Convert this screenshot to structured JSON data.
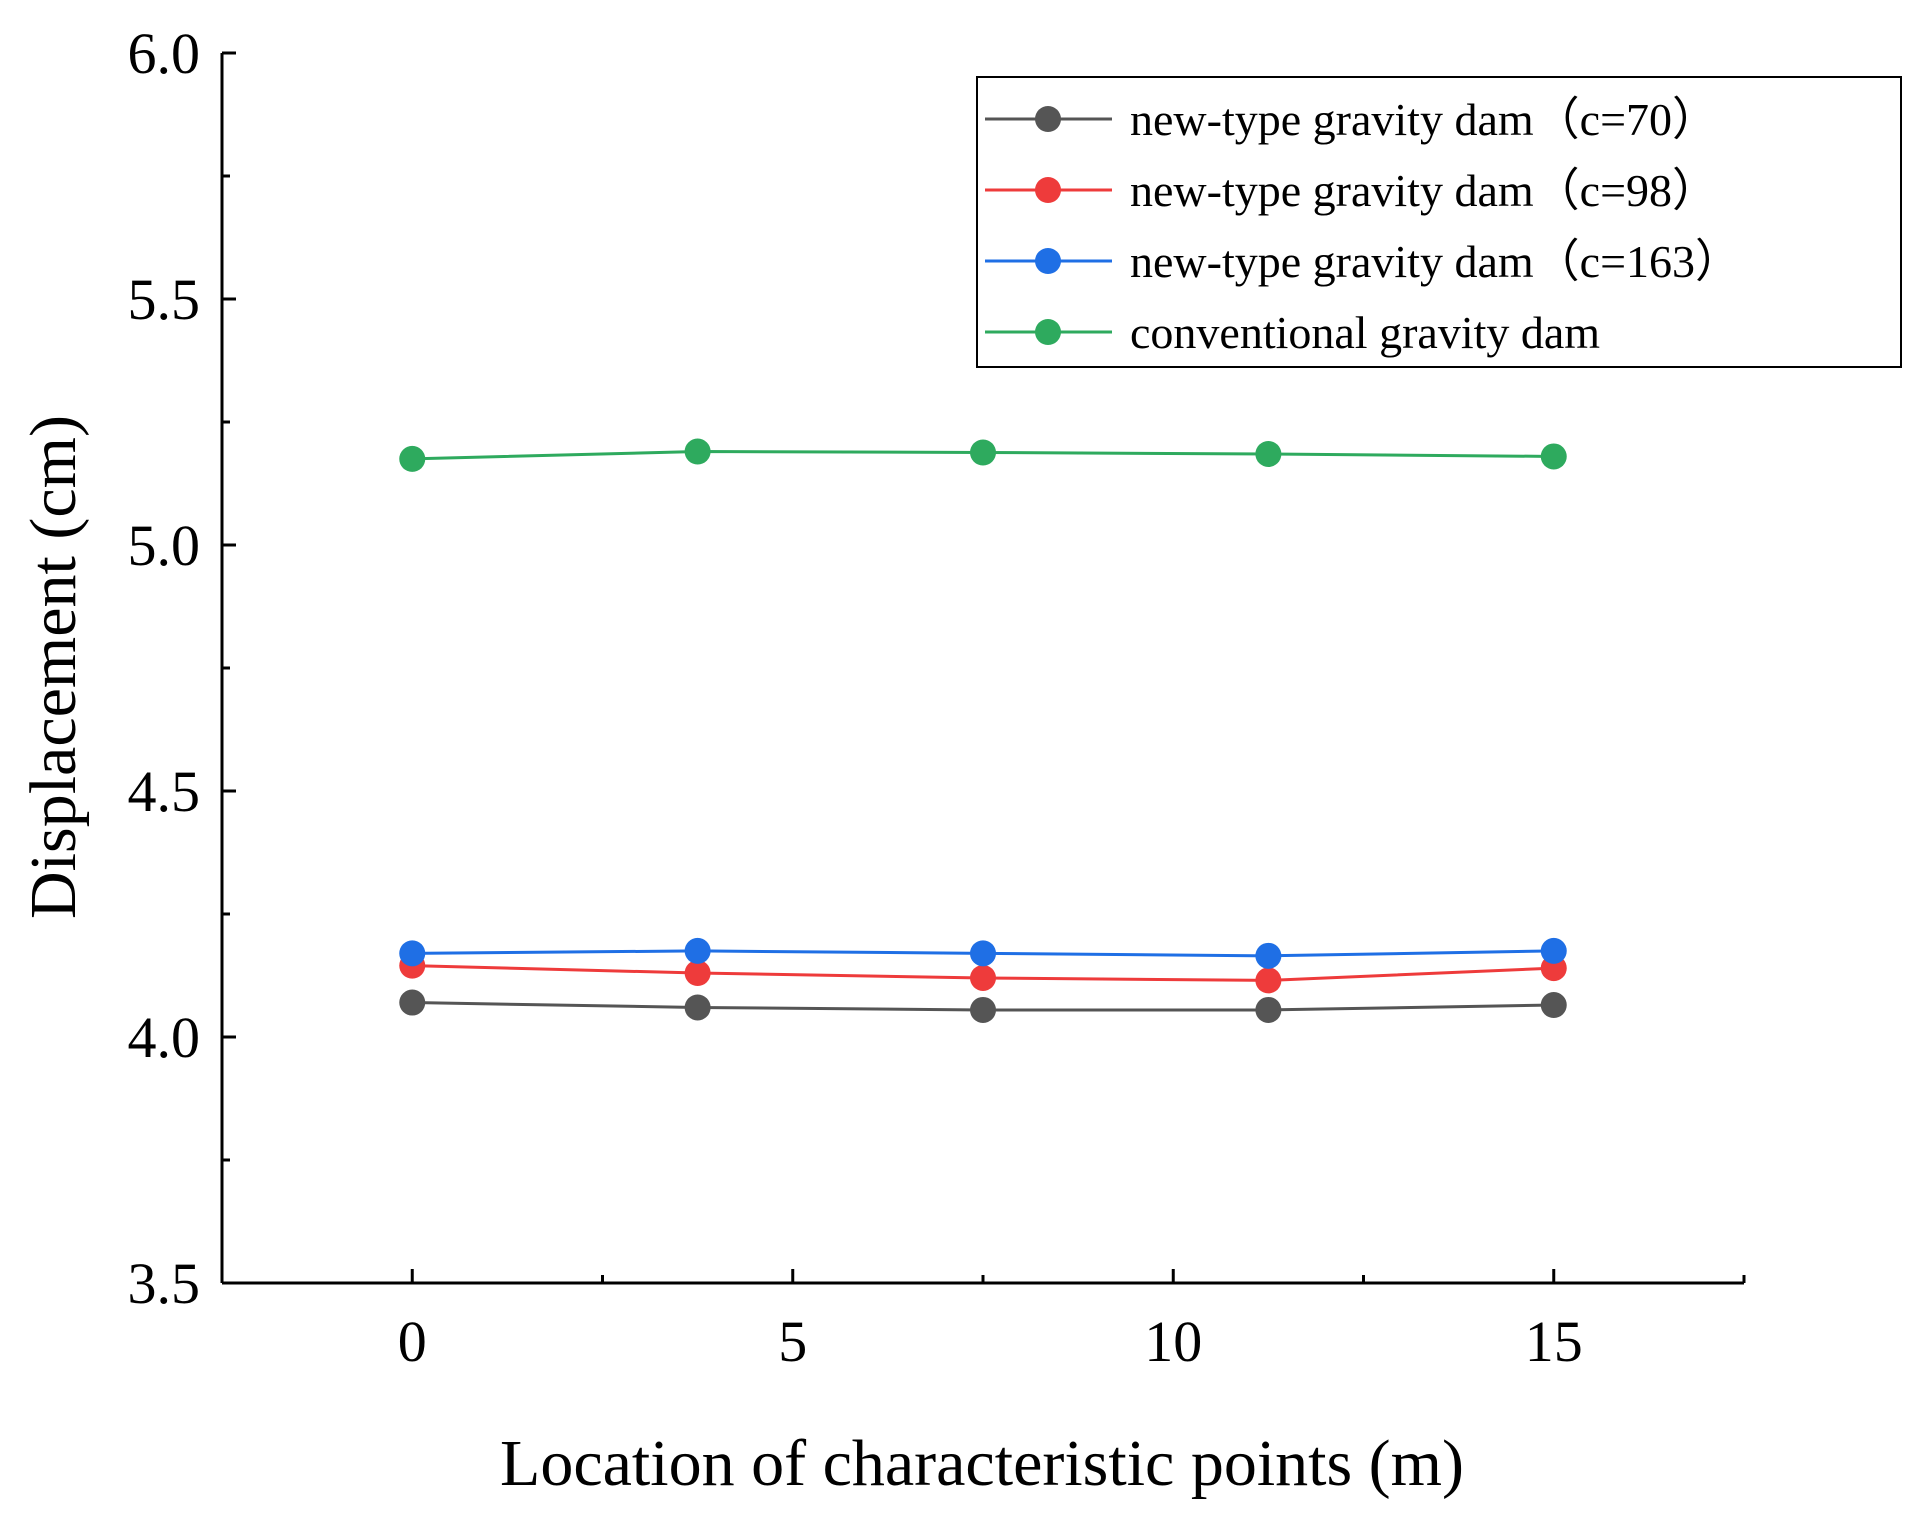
{
  "chart_data": {
    "type": "line",
    "title": "",
    "xlabel": "Location of characteristic points (m)",
    "ylabel": "Displacement (cm)",
    "xlim": [
      -2.5,
      17.5
    ],
    "ylim": [
      3.5,
      6.0
    ],
    "x_ticks": [
      0,
      5,
      10,
      15
    ],
    "x_tick_labels": [
      "0",
      "5",
      "10",
      "15"
    ],
    "x_minor_ticks": [
      2.5,
      7.5,
      12.5,
      17.5
    ],
    "y_ticks": [
      3.5,
      4.0,
      4.5,
      5.0,
      5.5,
      6.0
    ],
    "y_tick_labels": [
      "3.5",
      "4.0",
      "4.5",
      "5.0",
      "5.5",
      "6.0"
    ],
    "y_minor_ticks": [
      3.75,
      4.25,
      4.75,
      5.25,
      5.75
    ],
    "grid": false,
    "legend_position": "top-right",
    "x": [
      0,
      3.75,
      7.5,
      11.25,
      15
    ],
    "series": [
      {
        "name": "new-type gravity dam（c=70）",
        "color": "#555555",
        "values": [
          4.07,
          4.06,
          4.055,
          4.055,
          4.065
        ]
      },
      {
        "name": "new-type gravity dam（c=98）",
        "color": "#ee3b3b",
        "values": [
          4.145,
          4.13,
          4.12,
          4.115,
          4.14
        ]
      },
      {
        "name": "new-type gravity dam（c=163）",
        "color": "#1f6fe5",
        "values": [
          4.17,
          4.175,
          4.17,
          4.165,
          4.175
        ]
      },
      {
        "name": "conventional gravity dam",
        "color": "#2eaa5e",
        "values": [
          5.175,
          5.19,
          5.188,
          5.185,
          5.18
        ]
      }
    ]
  }
}
